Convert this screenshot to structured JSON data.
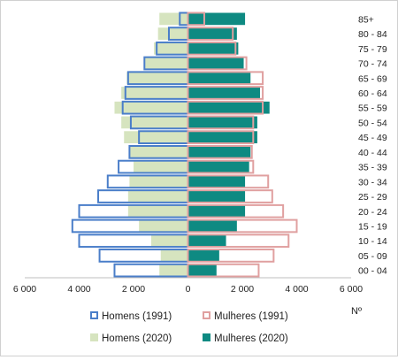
{
  "chart_data": {
    "type": "bar",
    "orientation": "horizontal",
    "layout": "population-pyramid",
    "categories": [
      "00 - 04",
      "05 - 09",
      "10 - 14",
      "15 - 19",
      "20 - 24",
      "25 - 29",
      "30 - 34",
      "35 - 39",
      "40 - 44",
      "45 - 49",
      "50 - 54",
      "55 - 59",
      "60 - 64",
      "65 - 69",
      "70 - 74",
      "75 - 79",
      "80 - 84",
      "85+"
    ],
    "series": [
      {
        "name": "Homens (1991)",
        "side": "left",
        "style": "outline",
        "color": "#4a7ec9",
        "values": [
          2700,
          3250,
          4000,
          4250,
          4000,
          3300,
          2950,
          2550,
          2150,
          1800,
          2100,
          2400,
          2300,
          2200,
          1600,
          1150,
          700,
          300
        ]
      },
      {
        "name": "Mulheres (1991)",
        "side": "right",
        "style": "outline",
        "color": "#e0a0a0",
        "values": [
          2600,
          3150,
          3700,
          4000,
          3500,
          3100,
          2950,
          2400,
          2350,
          2400,
          2400,
          2750,
          2750,
          2750,
          2150,
          1750,
          1650,
          600
        ]
      },
      {
        "name": "Homens (2020)",
        "side": "left",
        "style": "fill",
        "color": "#d6e4bf",
        "values": [
          1050,
          1000,
          1350,
          1800,
          2200,
          2200,
          2150,
          2000,
          2150,
          2350,
          2450,
          2700,
          2450,
          2250,
          1600,
          1250,
          1100,
          1050
        ]
      },
      {
        "name": "Mulheres (2020)",
        "side": "right",
        "style": "fill",
        "color": "#0e8a82",
        "values": [
          1050,
          1150,
          1400,
          1800,
          2100,
          2100,
          2100,
          2250,
          2300,
          2550,
          2550,
          3000,
          2650,
          2300,
          2050,
          1850,
          1800,
          2100
        ]
      }
    ],
    "x_ticks": [
      "6 000",
      "4 000",
      "2 000",
      "0",
      "2 000",
      "4 000",
      "6 000"
    ],
    "xlim": [
      -6000,
      6000
    ],
    "xlabel": "Nº",
    "legend_position": "bottom",
    "grid": false
  }
}
